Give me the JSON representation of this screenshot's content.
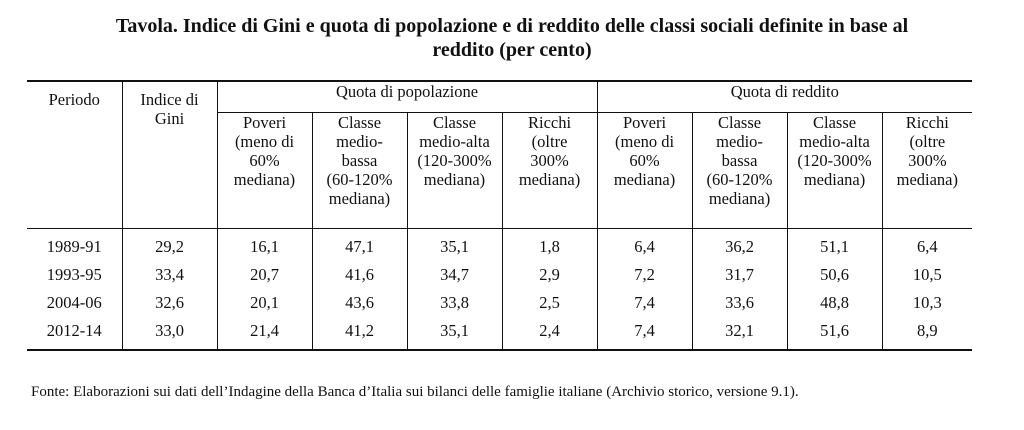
{
  "title": {
    "line1": "Tavola. Indice di Gini e quota di popolazione e di reddito delle classi sociali definite in base al",
    "line2": "reddito (per cento)"
  },
  "headers": {
    "periodo": "Periodo",
    "gini_line1": "Indice di",
    "gini_line2": "Gini",
    "group_pop": "Quota di popolazione",
    "group_red": "Quota di reddito",
    "sub": [
      [
        "Poveri",
        "(meno di",
        "60%",
        "mediana)"
      ],
      [
        "Classe",
        "medio-",
        "bassa",
        "(60-120%",
        "mediana)"
      ],
      [
        "Classe",
        "medio-alta",
        "(120-300%",
        "mediana)"
      ],
      [
        "Ricchi",
        "(oltre",
        "300%",
        "mediana)"
      ],
      [
        "Poveri",
        "(meno di",
        "60%",
        "mediana)"
      ],
      [
        "Classe",
        "medio-",
        "bassa",
        "(60-120%",
        "mediana)"
      ],
      [
        "Classe",
        "medio-alta",
        "(120-300%",
        "mediana)"
      ],
      [
        "Ricchi",
        "(oltre",
        "300%",
        "mediana)"
      ]
    ]
  },
  "rows": [
    {
      "periodo": "1989-91",
      "gini": "29,2",
      "pop": [
        "16,1",
        "47,1",
        "35,1",
        "1,8"
      ],
      "red": [
        "6,4",
        "36,2",
        "51,1",
        "6,4"
      ]
    },
    {
      "periodo": "1993-95",
      "gini": "33,4",
      "pop": [
        "20,7",
        "41,6",
        "34,7",
        "2,9"
      ],
      "red": [
        "7,2",
        "31,7",
        "50,6",
        "10,5"
      ]
    },
    {
      "periodo": "2004-06",
      "gini": "32,6",
      "pop": [
        "20,1",
        "43,6",
        "33,8",
        "2,5"
      ],
      "red": [
        "7,4",
        "33,6",
        "48,8",
        "10,3"
      ]
    },
    {
      "periodo": "2012-14",
      "gini": "33,0",
      "pop": [
        "21,4",
        "41,2",
        "35,1",
        "2,4"
      ],
      "red": [
        "7,4",
        "32,1",
        "51,6",
        "8,9"
      ]
    }
  ],
  "footnote": "Fonte: Elaborazioni sui dati dell’Indagine della Banca d’Italia sui bilanci delle famiglie italiane (Archivio storico, versione 9.1)."
}
